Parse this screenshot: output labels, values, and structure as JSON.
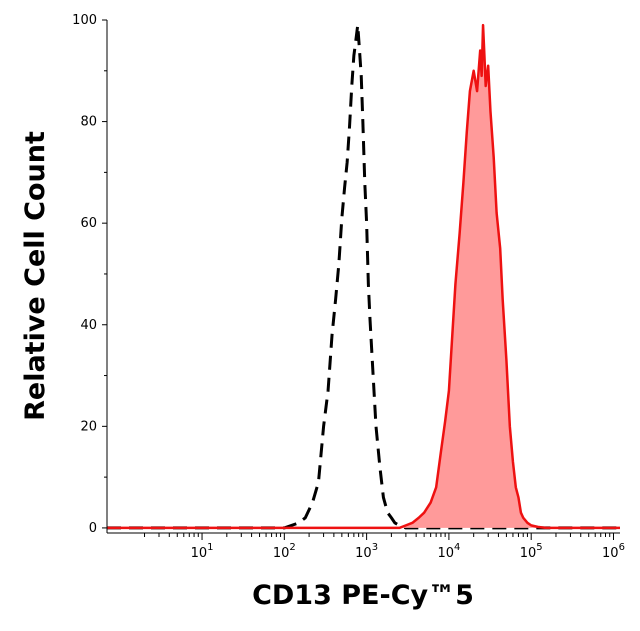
{
  "chart_data": {
    "type": "area",
    "xlabel": "CD13 PE-Cy™5",
    "ylabel": "Relative Cell Count",
    "xscale": "log",
    "xlim": [
      0.7,
      1200000
    ],
    "ylim": [
      -1,
      100
    ],
    "yticks": [
      0,
      20,
      40,
      60,
      80,
      100
    ],
    "xticks": [
      {
        "value": 10,
        "base": "10",
        "exp": "1"
      },
      {
        "value": 100,
        "base": "10",
        "exp": "2"
      },
      {
        "value": 1000,
        "base": "10",
        "exp": "3"
      },
      {
        "value": 10000,
        "base": "10",
        "exp": "4"
      },
      {
        "value": 100000,
        "base": "10",
        "exp": "5"
      },
      {
        "value": 1000000,
        "base": "10",
        "exp": "6"
      }
    ],
    "grid": false,
    "legend": "none",
    "series": [
      {
        "style": "dashed",
        "color": "#000000",
        "fill": "none",
        "x": [
          0.7,
          100,
          150,
          180,
          220,
          260,
          300,
          340,
          380,
          420,
          460,
          500,
          540,
          580,
          620,
          660,
          700,
          740,
          780,
          820,
          860,
          900,
          950,
          1000,
          1050,
          1100,
          1200,
          1300,
          1450,
          1600,
          1800,
          2000,
          2200,
          2500,
          3000,
          1200000
        ],
        "y": [
          0,
          0,
          1,
          2,
          5,
          9,
          20,
          27,
          38,
          45,
          52,
          61,
          67,
          72,
          79,
          87,
          93,
          96,
          99,
          94,
          89,
          80,
          68,
          60,
          48,
          41,
          30,
          20,
          12,
          6,
          3,
          2,
          1,
          0.5,
          0,
          0
        ]
      },
      {
        "style": "solid",
        "color": "#ee1111",
        "fill": "#ff9a9a",
        "x": [
          0.7,
          2500,
          3000,
          3600,
          4300,
          5000,
          6000,
          7000,
          8000,
          9000,
          10000,
          11000,
          12000,
          13500,
          15000,
          16500,
          18000,
          20000,
          22000,
          24000,
          25000,
          26000,
          27000,
          28000,
          30000,
          32000,
          35000,
          38000,
          42000,
          45000,
          50000,
          55000,
          60000,
          65000,
          70000,
          75000,
          80000,
          90000,
          100000,
          120000,
          150000,
          1200000
        ],
        "y": [
          0,
          0,
          0.5,
          1,
          2,
          3,
          5,
          8,
          15,
          21,
          27,
          38,
          48,
          58,
          68,
          78,
          86,
          90,
          86,
          94,
          89,
          99,
          93,
          87,
          91,
          82,
          73,
          62,
          55,
          45,
          33,
          20,
          13,
          8,
          6,
          3,
          2,
          1,
          0.5,
          0.2,
          0,
          0
        ]
      }
    ]
  }
}
